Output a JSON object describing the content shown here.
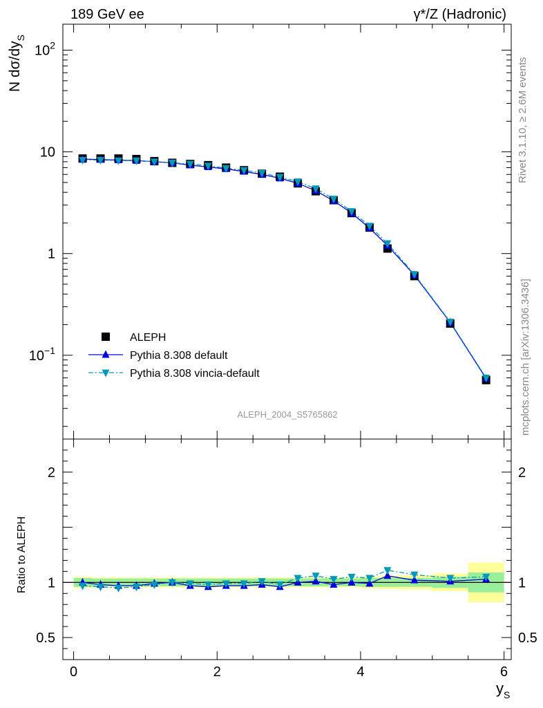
{
  "chart_data": {
    "type": "line",
    "title_left": "189 GeV ee",
    "title_right": "γ*/Z (Hadronic)",
    "analysis_id": "ALEPH_2004_S5765862",
    "side_label_rivet": "Rivet 3.1.10, ≥ 2.6M events",
    "side_label_mcplots": "mcplots.cern.ch [arXiv:1306.3436]",
    "xlabel": "y",
    "xlabel_sub": "S",
    "ylabel_top": "N dσ/dy",
    "ylabel_top_sub": "S",
    "ylabel_bottom": "Ratio to ALEPH",
    "xlim": [
      -0.15,
      6.1
    ],
    "ylim_top": [
      0.015,
      180
    ],
    "ylim_bottom": [
      0.3,
      2.3
    ],
    "yscale_top": "log",
    "x_ticks": [
      {
        "value": 0,
        "label": "0"
      },
      {
        "value": 2,
        "label": "2"
      },
      {
        "value": 4,
        "label": "4"
      },
      {
        "value": 6,
        "label": "6"
      }
    ],
    "y_ticks_top": [
      {
        "value": 0.1,
        "base": "10",
        "exp": "−1"
      },
      {
        "value": 1,
        "base": "1",
        "exp": ""
      },
      {
        "value": 10,
        "base": "10",
        "exp": ""
      },
      {
        "value": 100,
        "base": "10",
        "exp": "2"
      }
    ],
    "y_ticks_bottom": [
      {
        "value": 0.5,
        "label": "0.5"
      },
      {
        "value": 1,
        "label": "1"
      },
      {
        "value": 2,
        "label": "2"
      }
    ],
    "legend": {
      "position": "lower-left",
      "entries": [
        {
          "label": "ALEPH",
          "marker": "square",
          "color": "#000000"
        },
        {
          "label": "Pythia 8.308 default",
          "marker": "triangle-up",
          "color": "#0000dd",
          "line": "solid"
        },
        {
          "label": "Pythia 8.308 vincia-default",
          "marker": "triangle-down",
          "color": "#0099bb",
          "line": "dashdot"
        }
      ]
    },
    "x": [
      0.125,
      0.375,
      0.625,
      0.875,
      1.125,
      1.375,
      1.625,
      1.875,
      2.125,
      2.375,
      2.625,
      2.875,
      3.125,
      3.375,
      3.625,
      3.875,
      4.125,
      4.375,
      4.75,
      5.25,
      5.75
    ],
    "x_edges": [
      0,
      0.25,
      0.5,
      0.75,
      1,
      1.25,
      1.5,
      1.75,
      2,
      2.25,
      2.5,
      2.75,
      3,
      3.25,
      3.5,
      3.75,
      4,
      4.25,
      4.5,
      5,
      5.5,
      6
    ],
    "series": [
      {
        "name": "ALEPH",
        "values": [
          8.6,
          8.6,
          8.6,
          8.5,
          8.1,
          7.8,
          7.6,
          7.4,
          7.0,
          6.6,
          6.1,
          5.7,
          4.9,
          4.1,
          3.35,
          2.5,
          1.8,
          1.12,
          0.6,
          0.205,
          0.057
        ]
      },
      {
        "name": "Pythia 8.308 default",
        "values": [
          8.5,
          8.4,
          8.3,
          8.2,
          8.0,
          7.8,
          7.4,
          7.1,
          6.8,
          6.4,
          6.0,
          5.5,
          4.9,
          4.15,
          3.3,
          2.5,
          1.78,
          1.2,
          0.615,
          0.21,
          0.059
        ]
      },
      {
        "name": "Pythia 8.308 vincia-default",
        "values": [
          8.3,
          8.3,
          8.2,
          8.2,
          8.0,
          7.8,
          7.6,
          7.3,
          6.9,
          6.6,
          6.2,
          5.65,
          5.1,
          4.35,
          3.45,
          2.6,
          1.87,
          1.26,
          0.625,
          0.213,
          0.06
        ]
      }
    ],
    "ratio_series": [
      {
        "name": "Pythia 8.308 default",
        "values": [
          1.0,
          0.98,
          0.97,
          0.97,
          0.99,
          1.0,
          0.97,
          0.96,
          0.97,
          0.97,
          0.98,
          0.96,
          1.0,
          1.01,
          0.98,
          1.0,
          0.99,
          1.06,
          1.02,
          1.01,
          1.03
        ]
      },
      {
        "name": "Pythia 8.308 vincia-default",
        "values": [
          0.97,
          0.96,
          0.95,
          0.96,
          0.98,
          1.0,
          0.99,
          0.98,
          0.99,
          0.99,
          1.01,
          0.98,
          1.04,
          1.06,
          1.03,
          1.05,
          1.04,
          1.11,
          1.07,
          1.04,
          1.05
        ]
      }
    ],
    "band_stat": [
      [
        0.0,
        0.25,
        0.04
      ],
      [
        0.25,
        0.5,
        0.035
      ],
      [
        0.5,
        0.75,
        0.035
      ],
      [
        0.75,
        1.0,
        0.035
      ],
      [
        1.0,
        1.25,
        0.035
      ],
      [
        1.25,
        1.5,
        0.035
      ],
      [
        1.5,
        1.75,
        0.035
      ],
      [
        1.75,
        2.0,
        0.035
      ],
      [
        2.0,
        2.25,
        0.035
      ],
      [
        2.25,
        2.5,
        0.035
      ],
      [
        2.5,
        2.75,
        0.035
      ],
      [
        2.75,
        3.0,
        0.035
      ],
      [
        3.0,
        3.25,
        0.035
      ],
      [
        3.25,
        3.5,
        0.035
      ],
      [
        3.5,
        3.75,
        0.035
      ],
      [
        3.75,
        4.0,
        0.035
      ],
      [
        4.0,
        4.25,
        0.04
      ],
      [
        4.25,
        4.5,
        0.04
      ],
      [
        4.5,
        5.0,
        0.04
      ],
      [
        5.0,
        5.5,
        0.05
      ],
      [
        5.5,
        6.0,
        0.09
      ]
    ],
    "band_total": [
      [
        0.0,
        0.25,
        0.05
      ],
      [
        0.25,
        0.5,
        0.045
      ],
      [
        0.5,
        0.75,
        0.045
      ],
      [
        0.75,
        1.0,
        0.045
      ],
      [
        1.0,
        1.25,
        0.045
      ],
      [
        1.25,
        1.5,
        0.045
      ],
      [
        1.5,
        1.75,
        0.045
      ],
      [
        1.75,
        2.0,
        0.045
      ],
      [
        2.0,
        2.25,
        0.045
      ],
      [
        2.25,
        2.5,
        0.045
      ],
      [
        2.5,
        2.75,
        0.045
      ],
      [
        2.75,
        3.0,
        0.045
      ],
      [
        3.0,
        3.25,
        0.045
      ],
      [
        3.25,
        3.5,
        0.045
      ],
      [
        3.5,
        3.75,
        0.045
      ],
      [
        3.75,
        4.0,
        0.045
      ],
      [
        4.0,
        4.25,
        0.055
      ],
      [
        4.25,
        4.5,
        0.06
      ],
      [
        4.5,
        5.0,
        0.065
      ],
      [
        5.0,
        5.5,
        0.08
      ],
      [
        5.5,
        6.0,
        0.18
      ]
    ],
    "colors": {
      "data": "#000000",
      "pythia_default": "#0000dd",
      "vincia": "#0099bb",
      "band_stat": "#99ee99",
      "band_total": "#ffff99"
    }
  }
}
